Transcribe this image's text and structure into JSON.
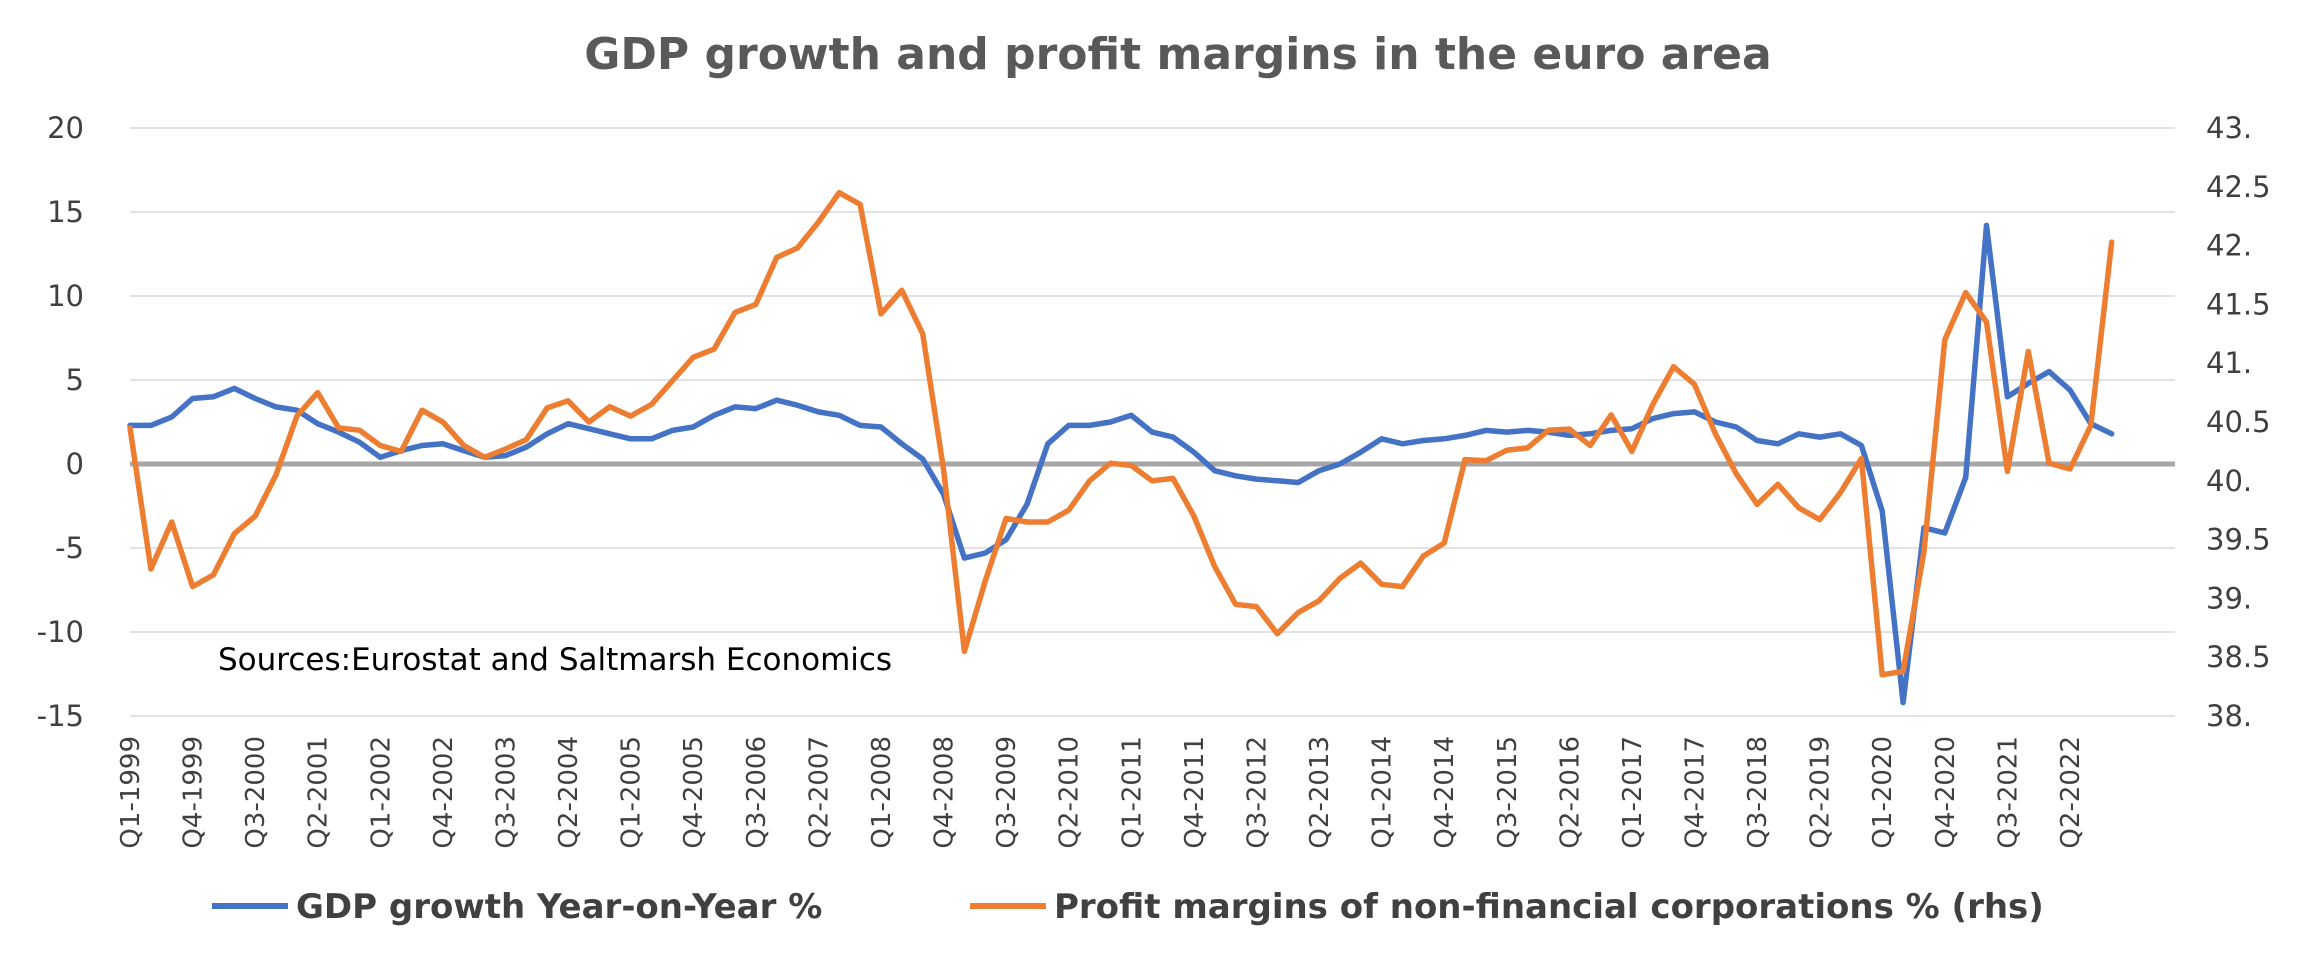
{
  "chart_data": {
    "type": "line",
    "title": "GDP growth and profit margins in the euro area",
    "annotation": "Sources:Eurostat and Saltmarsh Economics",
    "x_start": "Q1-1999",
    "x_tick_labels": [
      "Q1-1999",
      "Q4-1999",
      "Q3-2000",
      "Q2-2001",
      "Q1-2002",
      "Q4-2002",
      "Q3-2003",
      "Q2-2004",
      "Q1-2005",
      "Q4-2005",
      "Q3-2006",
      "Q2-2007",
      "Q1-2008",
      "Q4-2008",
      "Q3-2009",
      "Q2-2010",
      "Q1-2011",
      "Q4-2011",
      "Q3-2012",
      "Q2-2013",
      "Q1-2014",
      "Q4-2014",
      "Q3-2015",
      "Q2-2016",
      "Q1-2017",
      "Q4-2017",
      "Q3-2018",
      "Q2-2019",
      "Q1-2020",
      "Q4-2020",
      "Q3-2021",
      "Q2-2022"
    ],
    "y_left": {
      "ylim": [
        -15,
        20
      ],
      "ticks": [
        "-15",
        "-10",
        "-5",
        "0",
        "5",
        "10",
        "15",
        "20"
      ]
    },
    "y_right": {
      "ylim": [
        38,
        43
      ],
      "ticks": [
        "38.",
        "38.5",
        "39.",
        "39.5",
        "40.",
        "40.5",
        "41.",
        "41.5",
        "42.",
        "42.5",
        "43."
      ]
    },
    "grid": true,
    "legend_position": "bottom",
    "series": [
      {
        "name": "GDP growth Year-on-Year %",
        "axis": "left",
        "color": "#4472C4",
        "values": [
          2.3,
          2.3,
          2.8,
          3.9,
          4.0,
          4.5,
          3.9,
          3.4,
          3.2,
          2.4,
          1.9,
          1.3,
          0.4,
          0.8,
          1.1,
          1.2,
          0.8,
          0.4,
          0.5,
          1.0,
          1.8,
          2.4,
          2.1,
          1.8,
          1.5,
          1.5,
          2.0,
          2.2,
          2.9,
          3.4,
          3.3,
          3.8,
          3.5,
          3.1,
          2.9,
          2.3,
          2.2,
          1.2,
          0.3,
          -1.8,
          -5.6,
          -5.3,
          -4.5,
          -2.4,
          1.2,
          2.3,
          2.3,
          2.5,
          2.9,
          1.9,
          1.6,
          0.7,
          -0.4,
          -0.7,
          -0.9,
          -1.0,
          -1.1,
          -0.4,
          0.0,
          0.7,
          1.5,
          1.2,
          1.4,
          1.5,
          1.7,
          2.0,
          1.9,
          2.0,
          1.9,
          1.7,
          1.8,
          2.0,
          2.1,
          2.7,
          3.0,
          3.1,
          2.5,
          2.2,
          1.4,
          1.2,
          1.8,
          1.6,
          1.8,
          1.1,
          -2.8,
          -14.2,
          -3.8,
          -4.1,
          -0.8,
          14.2,
          4.0,
          4.8,
          5.5,
          4.4,
          2.4,
          1.8
        ]
      },
      {
        "name": "Profit margins of non-financial corporations % (rhs)",
        "axis": "right",
        "color": "#ED7D31",
        "values": [
          40.45,
          39.25,
          39.65,
          39.1,
          39.2,
          39.55,
          39.7,
          40.05,
          40.55,
          40.75,
          40.45,
          40.43,
          40.3,
          40.25,
          40.6,
          40.5,
          40.3,
          40.2,
          40.27,
          40.35,
          40.62,
          40.68,
          40.5,
          40.63,
          40.55,
          40.65,
          40.85,
          41.05,
          41.12,
          41.43,
          41.5,
          41.9,
          41.98,
          42.2,
          42.45,
          42.35,
          41.42,
          41.62,
          41.25,
          40.1,
          38.55,
          39.15,
          39.68,
          39.65,
          39.65,
          39.75,
          40.0,
          40.15,
          40.13,
          40.0,
          40.02,
          39.7,
          39.27,
          38.95,
          38.93,
          38.7,
          38.88,
          38.98,
          39.17,
          39.3,
          39.12,
          39.1,
          39.36,
          39.47,
          40.18,
          40.17,
          40.26,
          40.28,
          40.43,
          40.44,
          40.3,
          40.56,
          40.25,
          40.65,
          40.97,
          40.82,
          40.4,
          40.06,
          39.8,
          39.97,
          39.77,
          39.67,
          39.9,
          40.19,
          38.35,
          38.38,
          39.4,
          41.2,
          41.6,
          41.35,
          40.08,
          41.1,
          40.15,
          40.1,
          40.47,
          42.03
        ]
      }
    ]
  }
}
